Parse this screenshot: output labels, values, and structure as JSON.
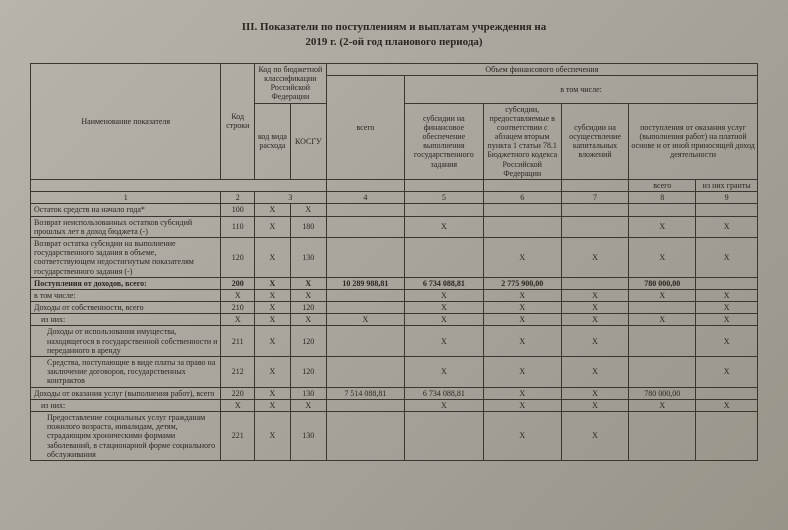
{
  "title_line1": "III. Показатели по поступлениям и выплатам учреждения на",
  "title_line2": "2019 г. (2-ой год планового периода)",
  "headers": {
    "name": "Наименование показателя",
    "row_code": "Код строки",
    "budget_class": "Код по бюджетной классификации Российской Федерации",
    "kvr": "код вида расхода",
    "kosgu": "КОСГУ",
    "fin_vol": "Объем финансового обеспечения",
    "total": "всего",
    "including": "в том числе:",
    "sub1": "субсидии на финансовое обеспечение выполнения государственного задания",
    "sub2": "субсидии, предоставляемые в соответствии с абзацем вторым пункта 1 статьи 78.1 Бюджетного кодекса Российской Федерации",
    "sub3": "субсидии на осуществление капитальных вложений",
    "sub4": "поступления от оказания услуг (выполнения работ) на платной основе и от иной приносящей доход деятельности",
    "sub4_total": "всего",
    "sub4_grants": "из них гранты"
  },
  "colnums": [
    "1",
    "2",
    "3",
    "4",
    "5",
    "6",
    "7",
    "8",
    "9"
  ],
  "rows": [
    {
      "name": "Остаток средств на начало года*",
      "code": "100",
      "kvr": "X",
      "kosgu": "X",
      "c4": "",
      "c5": "",
      "c6": "",
      "c7": "",
      "c8": "",
      "c9": ""
    },
    {
      "name": "Возврат неиспользованных остатков субсидий прошлых лет в доход бюджета (-)",
      "code": "110",
      "kvr": "X",
      "kosgu": "180",
      "c4": "",
      "c5": "X",
      "c6": "",
      "c7": "",
      "c8": "X",
      "c9": "X"
    },
    {
      "name": "Возврат остатка субсидии на выполнение государственного задания в объеме, соответствующем недостигнутым показателям государственного задания (-)",
      "code": "120",
      "kvr": "X",
      "kosgu": "130",
      "c4": "",
      "c5": "",
      "c6": "X",
      "c7": "X",
      "c8": "X",
      "c9": "X"
    },
    {
      "name": "Поступления от доходов, всего:",
      "code": "200",
      "kvr": "X",
      "kosgu": "X",
      "c4": "10 289 988,81",
      "c5": "6 734 088,81",
      "c6": "2 775 900,00",
      "c7": "",
      "c8": "780 000,00",
      "c9": "",
      "bold": true
    },
    {
      "name": "в том числе:",
      "code": "X",
      "kvr": "X",
      "kosgu": "X",
      "c4": "",
      "c5": "X",
      "c6": "X",
      "c7": "X",
      "c8": "X",
      "c9": "X"
    },
    {
      "name": "Доходы от собственности, всего",
      "code": "210",
      "kvr": "X",
      "kosgu": "120",
      "c4": "",
      "c5": "X",
      "c6": "X",
      "c7": "X",
      "c8": "",
      "c9": "X"
    },
    {
      "name": "из них:",
      "code": "X",
      "kvr": "X",
      "kosgu": "X",
      "c4": "X",
      "c5": "X",
      "c6": "X",
      "c7": "X",
      "c8": "X",
      "c9": "X",
      "indent": 1
    },
    {
      "name": "Доходы от использования имущества, находящегося в государственной собственности и переданного в аренду",
      "code": "211",
      "kvr": "X",
      "kosgu": "120",
      "c4": "",
      "c5": "X",
      "c6": "X",
      "c7": "X",
      "c8": "",
      "c9": "X",
      "indent": 2
    },
    {
      "name": "Средства, поступающие в виде платы за право на заключение договоров, государственных контрактов",
      "code": "212",
      "kvr": "X",
      "kosgu": "120",
      "c4": "",
      "c5": "X",
      "c6": "X",
      "c7": "X",
      "c8": "",
      "c9": "X",
      "indent": 2
    },
    {
      "name": "Доходы от оказания услуг (выполнения работ), всего",
      "code": "220",
      "kvr": "X",
      "kosgu": "130",
      "c4": "7 514 088,81",
      "c5": "6 734 088,81",
      "c6": "X",
      "c7": "X",
      "c8": "780 000,00",
      "c9": ""
    },
    {
      "name": "из них:",
      "code": "X",
      "kvr": "X",
      "kosgu": "X",
      "c4": "",
      "c5": "X",
      "c6": "X",
      "c7": "X",
      "c8": "X",
      "c9": "X",
      "indent": 1
    },
    {
      "name": "Предоставление социальных услуг гражданам пожилого возраста, инвалидам, детям, страдающим хроническими формами заболеваний, в стационарной форме социального обслуживания",
      "code": "221",
      "kvr": "X",
      "kosgu": "130",
      "c4": "",
      "c5": "",
      "c6": "X",
      "c7": "X",
      "c8": "",
      "c9": "",
      "indent": 2
    }
  ]
}
